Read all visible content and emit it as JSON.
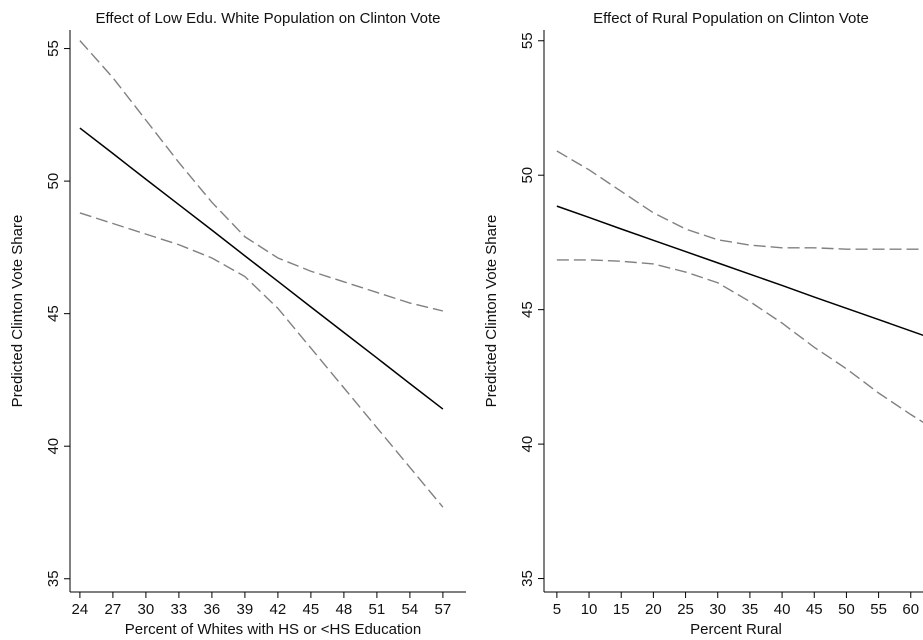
{
  "chart_data": [
    {
      "type": "line",
      "title": "Effect of Low Edu. White Population on Clinton Vote",
      "xlabel": "Percent of Whites with HS or <HS Education",
      "ylabel": "Predicted Clinton Vote Share",
      "x": [
        24,
        27,
        30,
        33,
        36,
        39,
        42,
        45,
        48,
        51,
        54,
        57
      ],
      "series": [
        {
          "color": "#000000",
          "dashed": false,
          "values": [
            52.0,
            51.04,
            50.07,
            49.11,
            48.15,
            47.18,
            46.22,
            45.25,
            44.29,
            43.33,
            42.36,
            41.4
          ]
        },
        {
          "color": "#808080",
          "dashed": true,
          "values": [
            55.3,
            53.9,
            52.3,
            50.7,
            49.2,
            47.9,
            47.1,
            46.6,
            46.2,
            45.8,
            45.4,
            45.1
          ]
        },
        {
          "color": "#808080",
          "dashed": true,
          "values": [
            48.8,
            48.4,
            48.0,
            47.6,
            47.1,
            46.4,
            45.2,
            43.7,
            42.2,
            40.7,
            39.2,
            37.7
          ]
        }
      ],
      "xlim": [
        23.1,
        59.1
      ],
      "xticks": [
        24,
        27,
        30,
        33,
        36,
        39,
        42,
        45,
        48,
        51,
        54,
        57
      ],
      "ylim": [
        34.5,
        55.7
      ],
      "yticks": [
        35,
        40,
        45,
        50,
        55
      ]
    },
    {
      "type": "line",
      "title": "Effect of Rural Population on Clinton Vote",
      "xlabel": "Percent Rural",
      "ylabel": "Predicted Clinton Vote Share",
      "x": [
        5,
        10,
        15,
        20,
        25,
        30,
        35,
        40,
        45,
        50,
        55,
        60,
        62
      ],
      "series": [
        {
          "color": "#000000",
          "dashed": false,
          "values": [
            48.85,
            48.43,
            48.0,
            47.58,
            47.16,
            46.74,
            46.32,
            45.9,
            45.47,
            45.05,
            44.63,
            44.21,
            44.04
          ]
        },
        {
          "color": "#808080",
          "dashed": true,
          "values": [
            50.9,
            50.2,
            49.4,
            48.6,
            48.0,
            47.6,
            47.4,
            47.3,
            47.3,
            47.25,
            47.25,
            47.25,
            47.25
          ]
        },
        {
          "color": "#808080",
          "dashed": true,
          "values": [
            46.85,
            46.85,
            46.8,
            46.7,
            46.4,
            46.0,
            45.3,
            44.5,
            43.6,
            42.8,
            41.9,
            41.1,
            40.8
          ]
        }
      ],
      "xlim": [
        3,
        61.9
      ],
      "xticks": [
        5,
        10,
        15,
        20,
        25,
        30,
        35,
        40,
        45,
        50,
        55,
        60
      ],
      "ylim": [
        34.5,
        55.4
      ],
      "yticks": [
        35,
        40,
        45,
        50,
        55
      ]
    }
  ]
}
